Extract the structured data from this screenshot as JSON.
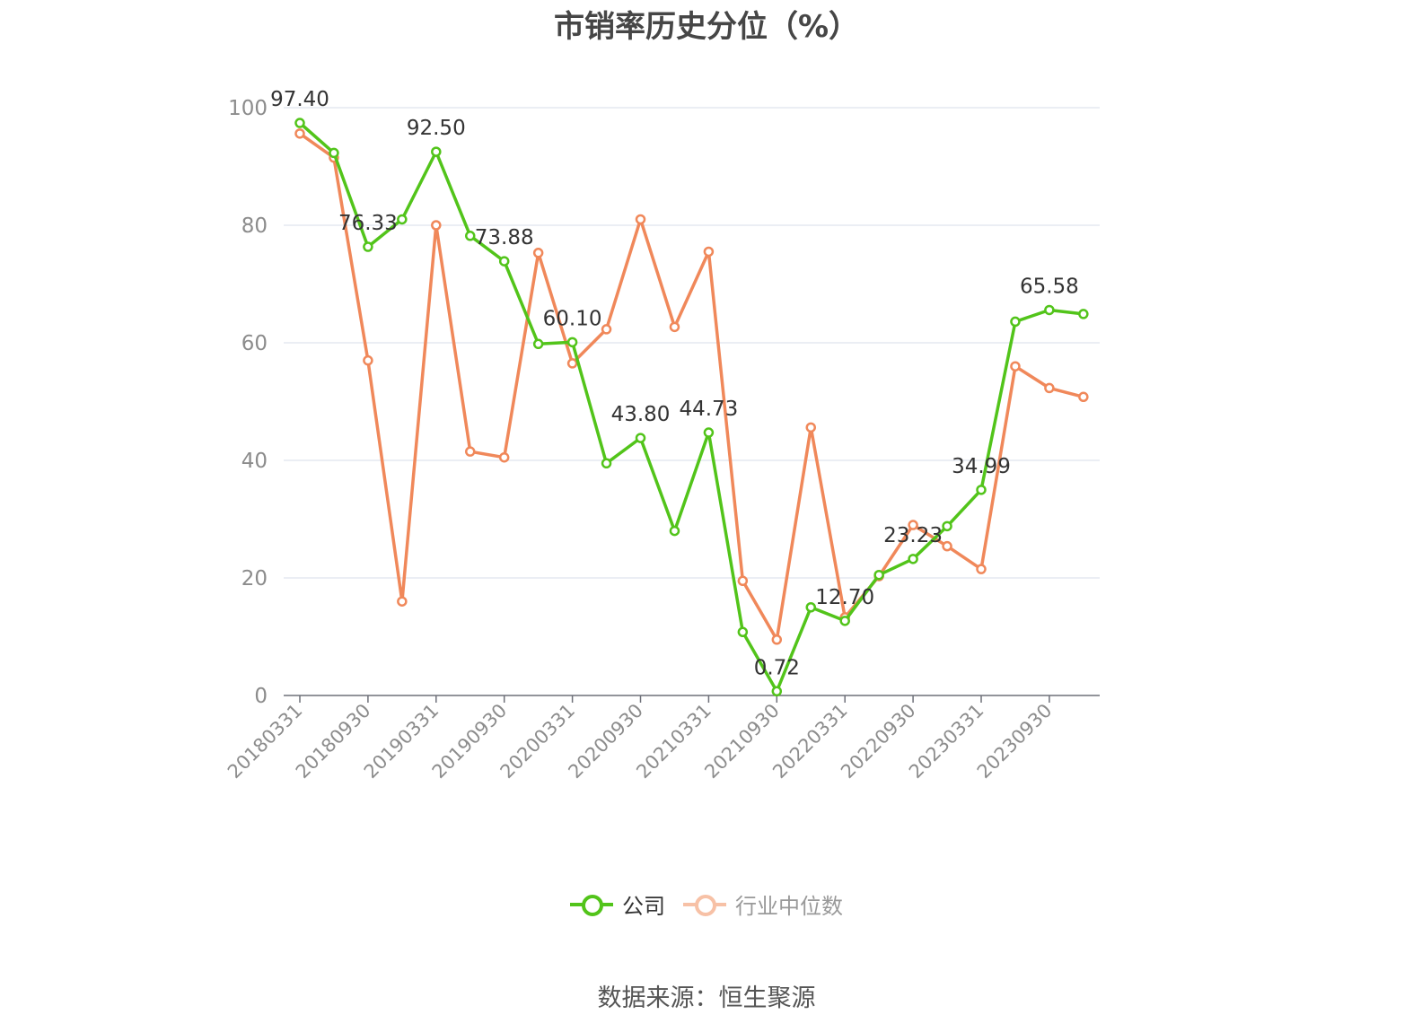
{
  "chart_data": {
    "type": "line",
    "title": "市销率历史分位（%）",
    "ylim": [
      0,
      100
    ],
    "yticks": [
      0,
      20,
      40,
      60,
      80,
      100
    ],
    "grid": true,
    "legend_position": "bottom",
    "x": [
      "20180331",
      "20180630",
      "20180930",
      "20181231",
      "20190331",
      "20190630",
      "20190930",
      "20191231",
      "20200331",
      "20200630",
      "20200930",
      "20201231",
      "20210331",
      "20210630",
      "20210930",
      "20211231",
      "20220331",
      "20220630",
      "20220930",
      "20221231",
      "20230331",
      "20230630",
      "20230930",
      "20231231"
    ],
    "x_tick_labels": [
      "20180331",
      "20180930",
      "20190331",
      "20190930",
      "20200331",
      "20200930",
      "20210331",
      "20210930",
      "20220331",
      "20220930",
      "20230331",
      "20230930"
    ],
    "series": [
      {
        "name": "公司",
        "color": "#52c41a",
        "values": [
          97.4,
          92.3,
          76.33,
          81.0,
          92.5,
          78.2,
          73.88,
          59.8,
          60.1,
          39.5,
          43.8,
          28.0,
          44.73,
          10.8,
          0.72,
          15.0,
          12.7,
          20.5,
          23.23,
          28.8,
          34.99,
          63.6,
          65.58,
          64.9
        ],
        "labels": [
          "97.40",
          "",
          "76.33",
          "",
          "92.50",
          "",
          "73.88",
          "",
          "60.10",
          "",
          "43.80",
          "",
          "44.73",
          "",
          "0.72",
          "",
          "12.70",
          "",
          "23.23",
          "",
          "34.99",
          "",
          "65.58",
          ""
        ]
      },
      {
        "name": "行业中位数",
        "color": "#f0885a",
        "values": [
          95.6,
          91.5,
          57.0,
          16.0,
          80.0,
          41.5,
          40.5,
          75.3,
          56.5,
          62.3,
          81.0,
          62.7,
          75.5,
          19.5,
          9.5,
          45.6,
          13.3,
          20.3,
          29.0,
          25.4,
          21.5,
          56.0,
          52.3,
          50.8
        ]
      }
    ]
  },
  "source_text": "数据来源：恒生聚源"
}
